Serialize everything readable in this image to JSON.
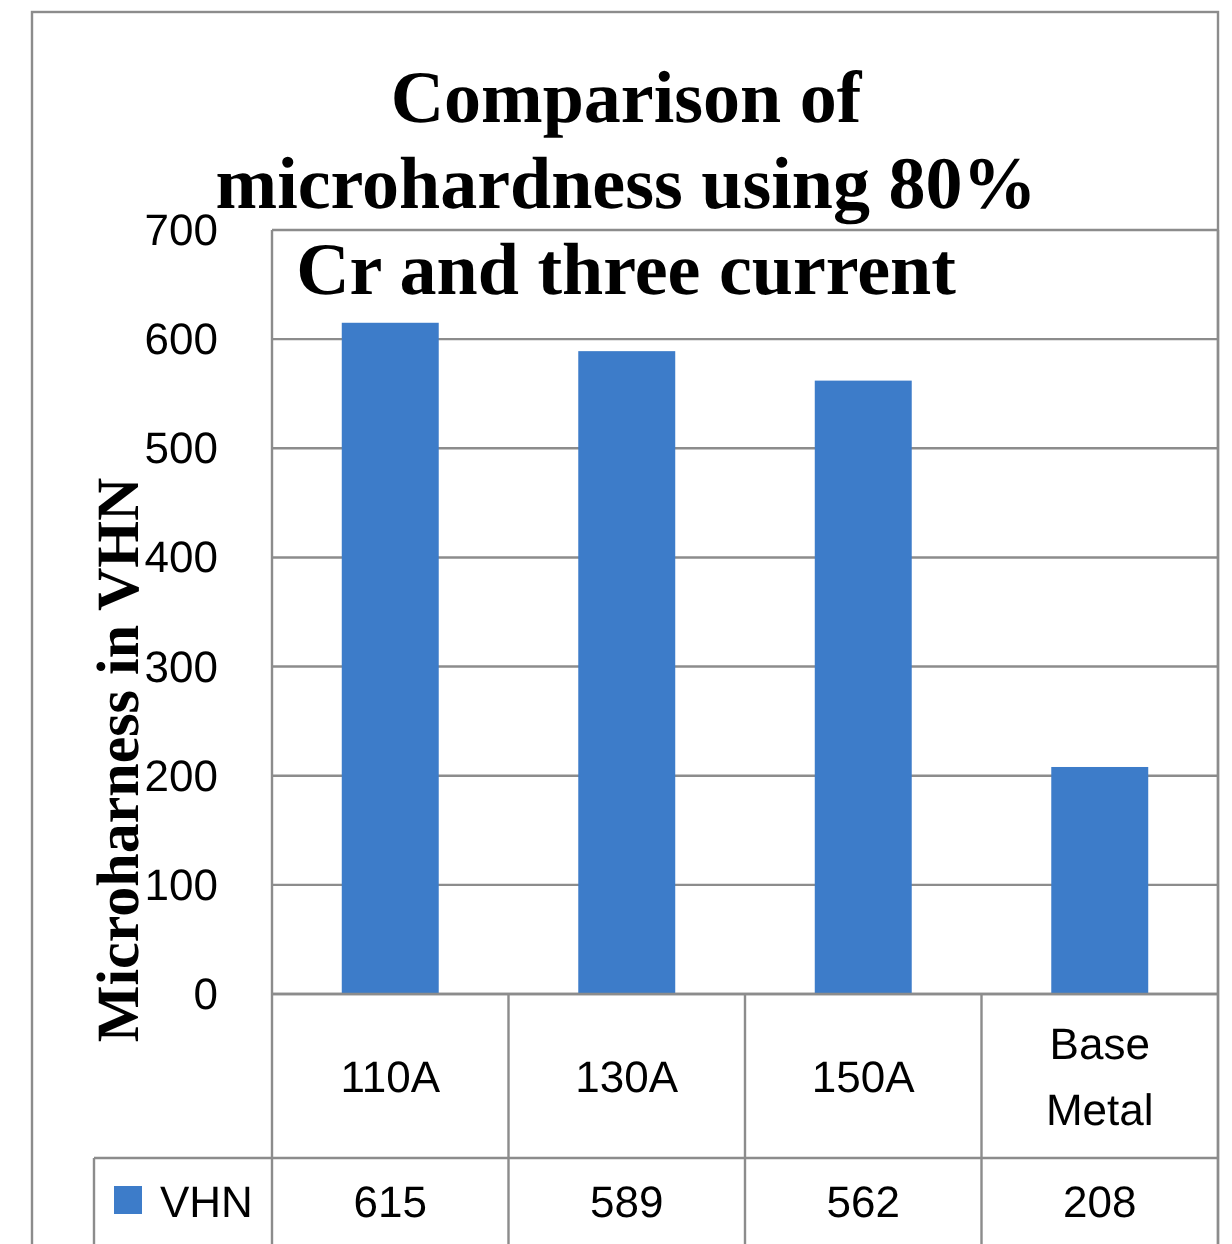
{
  "chart_data": {
    "type": "bar",
    "title": "Comparison of microhardness using 80% Cr and three current",
    "ylabel": "Microharness in VHN",
    "categories": [
      "110A",
      "130A",
      "150A",
      "Base Metal"
    ],
    "series": [
      {
        "name": "VHN",
        "color": "#3d7cc9",
        "values": [
          615,
          589,
          562,
          208
        ]
      }
    ],
    "ylim": [
      0,
      700
    ],
    "yticks": [
      0,
      100,
      200,
      300,
      400,
      500,
      600,
      700
    ],
    "grid": "y",
    "legend": "bottom",
    "data_labels": true
  }
}
